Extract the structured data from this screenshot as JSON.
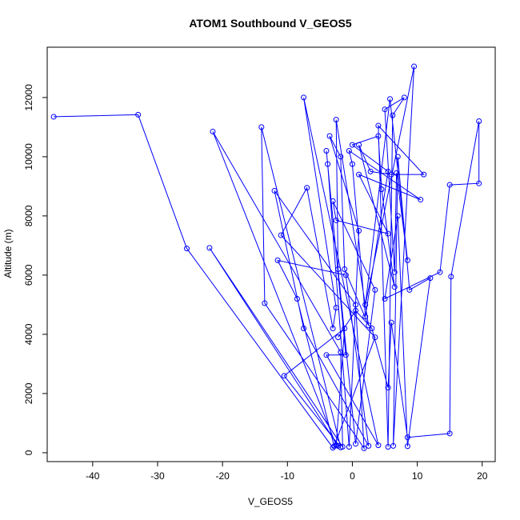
{
  "chart_data": {
    "type": "scatter",
    "title": "ATOM1 Southbound V_GEOS5",
    "xlabel": "V_GEOS5",
    "ylabel": "Altitude (m)",
    "xlim": [
      -47,
      22
    ],
    "ylim": [
      -300,
      13700
    ],
    "xticks": [
      -40,
      -30,
      -20,
      -10,
      0,
      10,
      20
    ],
    "yticks": [
      0,
      2000,
      4000,
      6000,
      8000,
      10000,
      12000
    ],
    "grid": false,
    "color": "#0000ff",
    "series": [
      {
        "points": [
          [
            -46,
            11350
          ],
          [
            -33,
            11420
          ],
          [
            -25.5,
            6900
          ],
          [
            -3,
            170
          ],
          [
            -2.2,
            230
          ],
          [
            -22,
            6920
          ],
          [
            -1.5,
            200
          ],
          [
            -1.8,
            3400
          ],
          [
            -21.5,
            10850
          ],
          [
            -2.5,
            250
          ],
          [
            -1.2,
            4200
          ],
          [
            -10.5,
            2600
          ],
          [
            -1.8,
            180
          ],
          [
            -14,
            11000
          ],
          [
            -13.5,
            5050
          ],
          [
            1.8,
            150
          ],
          [
            0.5,
            5000
          ],
          [
            -12,
            8850
          ],
          [
            -7.5,
            4200
          ],
          [
            2.5,
            230
          ],
          [
            -1,
            6000
          ],
          [
            -11.5,
            6500
          ],
          [
            -8.5,
            5200
          ],
          [
            -2.8,
            220
          ],
          [
            3.5,
            3900
          ],
          [
            -11,
            7350
          ],
          [
            -7,
            8950
          ],
          [
            -3,
            4200
          ],
          [
            -2.5,
            4900
          ],
          [
            -7.5,
            12000
          ],
          [
            4,
            250
          ],
          [
            -4,
            3300
          ],
          [
            -1,
            3300
          ],
          [
            -4,
            10200
          ],
          [
            -3.8,
            9750
          ],
          [
            -0.5,
            200
          ],
          [
            1,
            7500
          ],
          [
            -3.5,
            10700
          ],
          [
            -1.8,
            10000
          ],
          [
            -1.2,
            6200
          ],
          [
            2.5,
            4300
          ],
          [
            -2.5,
            11250
          ],
          [
            -2.2,
            6200
          ],
          [
            0.5,
            300
          ],
          [
            3.5,
            5500
          ],
          [
            -3,
            8500
          ],
          [
            -2.5,
            7850
          ],
          [
            5.5,
            7400
          ],
          [
            1,
            9400
          ],
          [
            10.5,
            8550
          ],
          [
            -0.5,
            10200
          ],
          [
            0,
            9750
          ],
          [
            2,
            4600
          ],
          [
            5.5,
            9500
          ],
          [
            0,
            10400
          ],
          [
            4,
            10700
          ],
          [
            4.5,
            8900
          ],
          [
            6.5,
            5600
          ],
          [
            1,
            10400
          ],
          [
            2.8,
            9500
          ],
          [
            6,
            9400
          ],
          [
            11,
            9400
          ],
          [
            4,
            11050
          ],
          [
            5.5,
            200
          ],
          [
            6.2,
            11400
          ],
          [
            8,
            12000
          ],
          [
            5,
            11600
          ],
          [
            6.5,
            6100
          ],
          [
            6.8,
            9450
          ],
          [
            8.5,
            6500
          ],
          [
            5.8,
            11950
          ],
          [
            2,
            5000
          ],
          [
            9.5,
            13050
          ],
          [
            6.3,
            230
          ],
          [
            7,
            10000
          ],
          [
            8.8,
            5500
          ],
          [
            12,
            5900
          ],
          [
            8.5,
            220
          ],
          [
            7,
            8000
          ],
          [
            5,
            5200
          ],
          [
            13.5,
            6100
          ],
          [
            15,
            9050
          ],
          [
            19.5,
            9100
          ],
          [
            19.5,
            11200
          ],
          [
            15.2,
            5950
          ],
          [
            15,
            650
          ],
          [
            8.5,
            520
          ],
          [
            6,
            4400
          ],
          [
            5.5,
            2200
          ],
          [
            3,
            4200
          ],
          [
            0.5,
            4800
          ],
          [
            -2.2,
            3900
          ]
        ]
      }
    ]
  }
}
